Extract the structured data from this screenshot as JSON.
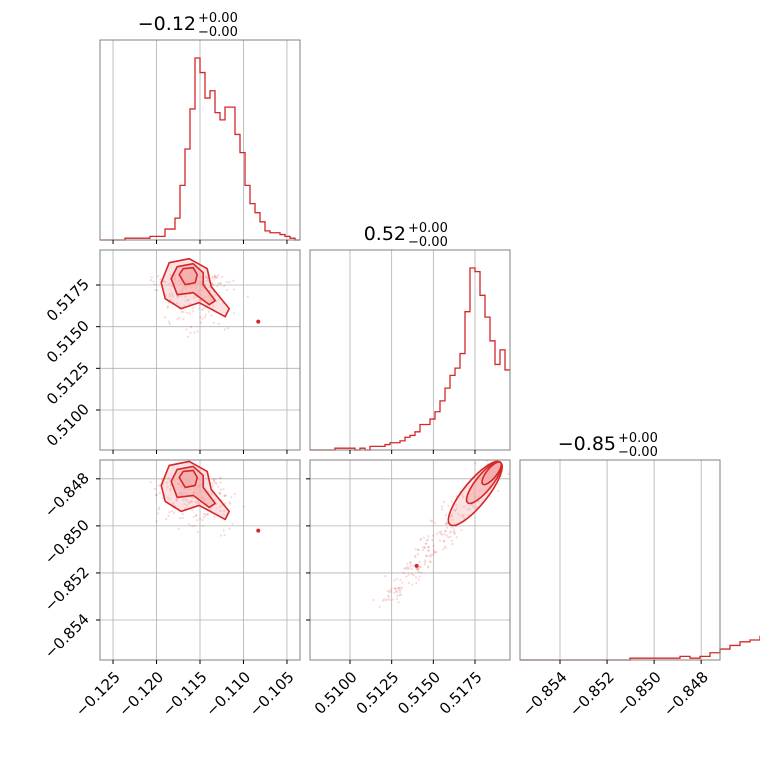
{
  "colors": {
    "series": "#d62728",
    "fill": "#f4a9a8",
    "grid": "#b0b0b0",
    "frame": "#808080"
  },
  "chart_data": {
    "type": "corner",
    "grid": true,
    "titles": [
      {
        "value": "−0.12",
        "sup": "+0.00",
        "sub": "−0.00"
      },
      {
        "value": "0.52",
        "sup": "+0.00",
        "sub": "−0.00"
      },
      {
        "value": "−0.85",
        "sup": "+0.00",
        "sub": "−0.00"
      }
    ],
    "parameters": [
      {
        "range": [
          -0.1265,
          -0.1035
        ],
        "ticks": [
          -0.125,
          -0.12,
          -0.115,
          -0.11,
          -0.105
        ],
        "tick_labels": [
          "−0.125",
          "−0.120",
          "−0.115",
          "−0.110",
          "−0.105"
        ]
      },
      {
        "range": [
          0.5076,
          0.5196
        ],
        "ticks": [
          0.51,
          0.5125,
          0.515,
          0.5175
        ],
        "tick_labels": [
          "0.5100",
          "0.5125",
          "0.5150",
          "0.5175"
        ]
      },
      {
        "range": [
          -0.8557,
          -0.8472
        ],
        "ticks": [
          -0.854,
          -0.852,
          -0.85,
          -0.848
        ],
        "tick_labels": [
          "−0.854",
          "−0.852",
          "−0.850",
          "−0.848"
        ]
      }
    ],
    "histograms": [
      {
        "x_start": -0.1265,
        "bin_width": 0.000575,
        "counts": [
          0.0,
          0.0,
          0.0,
          0.0,
          0.0,
          0.01,
          0.01,
          0.01,
          0.01,
          0.01,
          0.02,
          0.02,
          0.02,
          0.06,
          0.06,
          0.12,
          0.3,
          0.5,
          0.72,
          1.0,
          0.92,
          0.78,
          0.82,
          0.7,
          0.66,
          0.73,
          0.73,
          0.58,
          0.48,
          0.3,
          0.2,
          0.15,
          0.1,
          0.05,
          0.04,
          0.04,
          0.03,
          0.02,
          0.01,
          0.0
        ]
      },
      {
        "x_start": 0.5076,
        "bin_width": 0.0003,
        "counts": [
          0.0,
          0.0,
          0.0,
          0.0,
          0.0,
          0.01,
          0.01,
          0.01,
          0.01,
          0.0,
          0.01,
          0.0,
          0.02,
          0.02,
          0.02,
          0.03,
          0.04,
          0.04,
          0.05,
          0.07,
          0.08,
          0.1,
          0.14,
          0.14,
          0.17,
          0.21,
          0.27,
          0.34,
          0.41,
          0.45,
          0.53,
          0.76,
          1.0,
          0.98,
          0.85,
          0.73,
          0.6,
          0.47,
          0.55,
          0.44
        ]
      },
      {
        "x_start": -0.8557,
        "bin_width": 0.000425,
        "counts": [
          0.0,
          0.0,
          0.0,
          0.0,
          0.0,
          0.0,
          0.0,
          0.0,
          0.0,
          0.0,
          0.0,
          0.01,
          0.01,
          0.01,
          0.01,
          0.01,
          0.02,
          0.01,
          0.02,
          0.04,
          0.06,
          0.08,
          0.1,
          0.11,
          0.13,
          0.16,
          0.2,
          0.29,
          0.54,
          0.72,
          1.0,
          0.98,
          0.72,
          0.72,
          0.55
        ]
      }
    ],
    "correlations": [
      {
        "row": 1,
        "col": 0,
        "contour_peak": [
          -0.1167,
          0.5186
        ],
        "tail_point": [
          -0.1083,
          0.5153
        ]
      },
      {
        "row": 2,
        "col": 0,
        "contour_peak": [
          -0.1167,
          -0.8476
        ],
        "tail_point": [
          -0.1083,
          -0.8502
        ]
      },
      {
        "row": 2,
        "col": 1,
        "contour_peak": [
          0.5188,
          -0.8475
        ],
        "tail_point": [
          0.514,
          -0.8517
        ]
      }
    ]
  }
}
